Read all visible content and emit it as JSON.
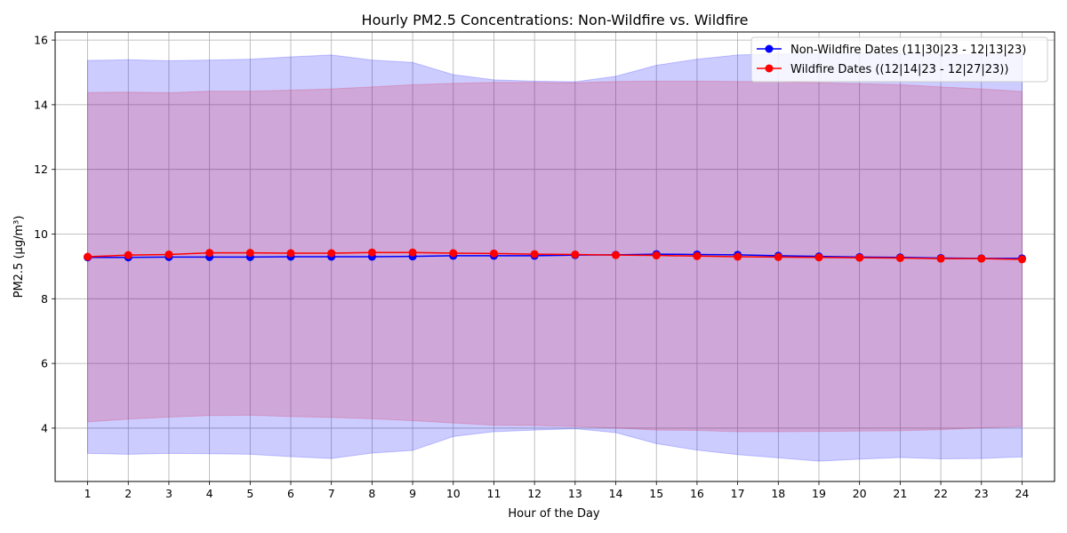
{
  "chart_data": {
    "type": "line",
    "title": "Hourly PM2.5 Concentrations: Non-Wildfire vs. Wildfire",
    "xlabel": "Hour of the Day",
    "ylabel": "PM2.5 (µg/m³)",
    "x": [
      1,
      2,
      3,
      4,
      5,
      6,
      7,
      8,
      9,
      10,
      11,
      12,
      13,
      14,
      15,
      16,
      17,
      18,
      19,
      20,
      21,
      22,
      23,
      24
    ],
    "xlim": [
      0.2,
      24.8
    ],
    "ylim": [
      2.35,
      16.25
    ],
    "yticks": [
      4,
      6,
      8,
      10,
      12,
      14,
      16
    ],
    "grid": true,
    "legend_position": "top-right",
    "series": [
      {
        "name": "Non-Wildfire Dates (11|30|23 - 12|13|23)",
        "color": "#0000ff",
        "band_color": "#0000ff",
        "values": [
          9.28,
          9.28,
          9.29,
          9.29,
          9.29,
          9.3,
          9.3,
          9.3,
          9.31,
          9.33,
          9.33,
          9.33,
          9.35,
          9.36,
          9.38,
          9.37,
          9.36,
          9.33,
          9.31,
          9.29,
          9.28,
          9.26,
          9.25,
          9.25
        ],
        "upper": [
          15.37,
          15.39,
          15.36,
          15.38,
          15.41,
          15.48,
          15.54,
          15.38,
          15.31,
          14.93,
          14.77,
          14.73,
          14.71,
          14.88,
          15.22,
          15.41,
          15.54,
          15.57,
          15.58,
          15.6,
          15.58,
          15.56,
          15.55,
          15.57
        ],
        "lower": [
          3.22,
          3.19,
          3.22,
          3.21,
          3.19,
          3.12,
          3.06,
          3.23,
          3.31,
          3.74,
          3.89,
          3.94,
          3.98,
          3.86,
          3.52,
          3.32,
          3.18,
          3.08,
          2.98,
          3.04,
          3.09,
          3.05,
          3.06,
          3.11
        ]
      },
      {
        "name": "Wildfire Dates ((12|14|23 - 12|27|23))",
        "color": "#ff0000",
        "band_color": "#dc143c",
        "values": [
          9.3,
          9.35,
          9.37,
          9.42,
          9.42,
          9.41,
          9.41,
          9.43,
          9.43,
          9.41,
          9.4,
          9.38,
          9.37,
          9.35,
          9.34,
          9.32,
          9.3,
          9.29,
          9.28,
          9.27,
          9.26,
          9.24,
          9.24,
          9.22
        ],
        "upper": [
          14.38,
          14.39,
          14.37,
          14.42,
          14.42,
          14.45,
          14.49,
          14.55,
          14.62,
          14.66,
          14.69,
          14.69,
          14.68,
          14.72,
          14.73,
          14.73,
          14.72,
          14.71,
          14.68,
          14.65,
          14.62,
          14.55,
          14.49,
          14.41
        ],
        "lower": [
          4.19,
          4.28,
          4.34,
          4.39,
          4.4,
          4.36,
          4.33,
          4.29,
          4.23,
          4.16,
          4.09,
          4.08,
          4.05,
          4.0,
          3.94,
          3.93,
          3.89,
          3.89,
          3.9,
          3.91,
          3.92,
          3.95,
          4.01,
          4.05
        ]
      }
    ]
  }
}
